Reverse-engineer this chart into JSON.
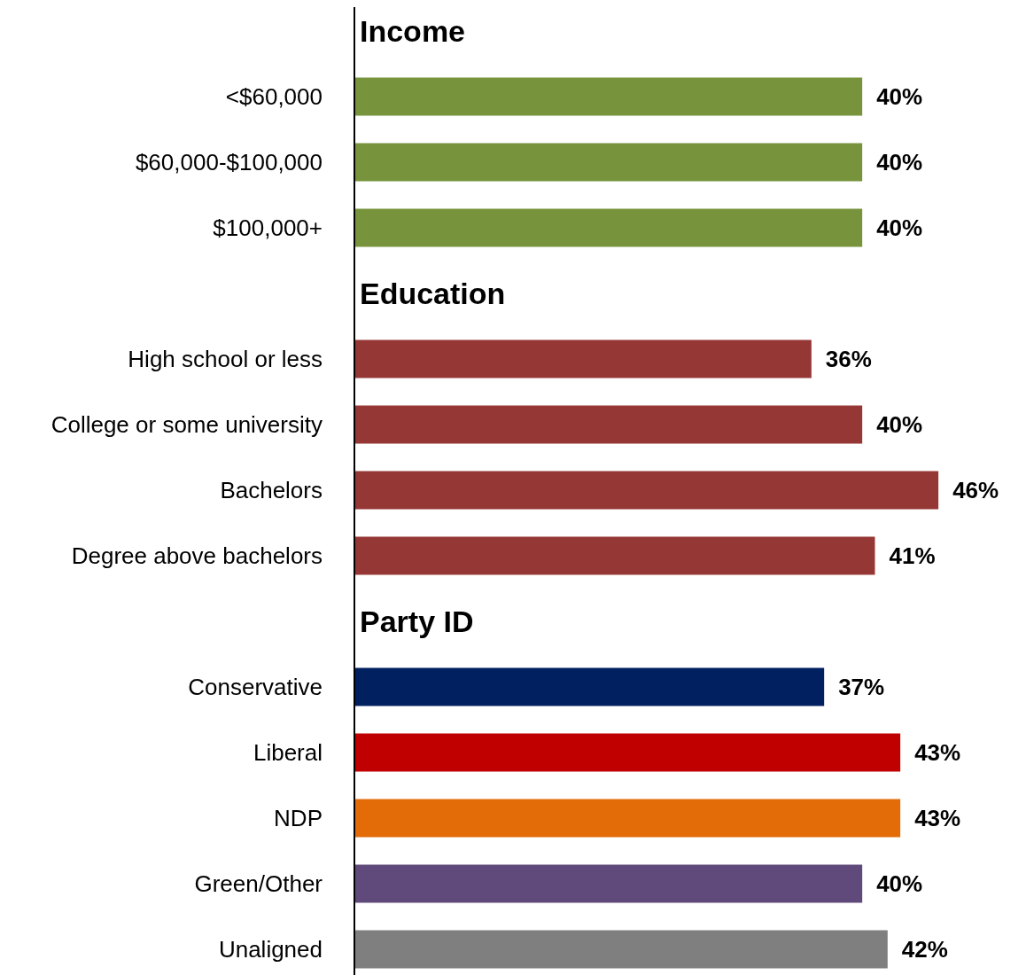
{
  "chart_data": {
    "type": "bar",
    "orientation": "horizontal",
    "categories": [
      null,
      "<$60,000",
      "$60,000-$100,000",
      "$100,000+",
      null,
      "High school or less",
      "College or some university",
      "Bachelors",
      "Degree above bachelors",
      null,
      "Conservative",
      "Liberal",
      "NDP",
      "Green/Other",
      "Unaligned"
    ],
    "values": [
      null,
      40,
      40,
      40,
      null,
      36,
      40,
      46,
      41,
      null,
      37,
      43,
      43,
      40,
      42
    ],
    "value_labels": [
      null,
      "40%",
      "40%",
      "40%",
      null,
      "36%",
      "40%",
      "46%",
      "41%",
      null,
      "37%",
      "43%",
      "43%",
      "40%",
      "42%"
    ],
    "colors": [
      null,
      "#77933c",
      "#77933c",
      "#77933c",
      null,
      "#953735",
      "#953735",
      "#953735",
      "#953735",
      null,
      "#002060",
      "#c00000",
      "#e36c09",
      "#604a7b",
      "#7f7f7f"
    ],
    "annotations": [
      "Income",
      "Education",
      "Party ID"
    ],
    "grid": false,
    "legend": false
  }
}
